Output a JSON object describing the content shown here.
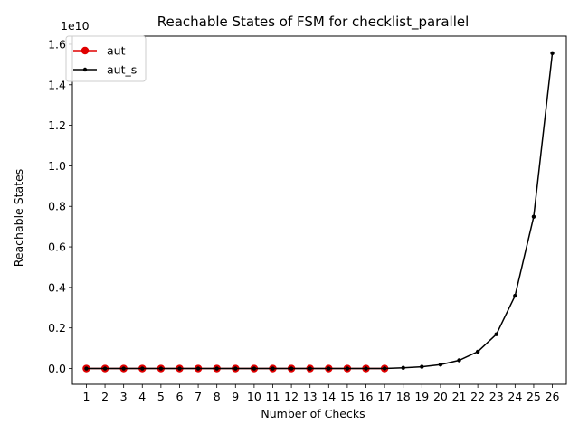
{
  "chart_data": {
    "type": "line",
    "title": "Reachable States of FSM for checklist_parallel",
    "xlabel": "Number of Checks",
    "ylabel": "Reachable States",
    "y_multiplier_label": "1e10",
    "x_ticks": [
      "1",
      "2",
      "3",
      "4",
      "5",
      "6",
      "7",
      "8",
      "9",
      "10",
      "11",
      "12",
      "13",
      "14",
      "15",
      "16",
      "17",
      "18",
      "19",
      "20",
      "21",
      "22",
      "23",
      "24",
      "25",
      "26"
    ],
    "y_ticks": [
      "0.0",
      "0.2",
      "0.4",
      "0.6",
      "0.8",
      "1.0",
      "1.2",
      "1.4",
      "1.6"
    ],
    "xlim": [
      0.25,
      26.75
    ],
    "ylim_e10": [
      -0.078,
      1.64
    ],
    "grid": false,
    "legend_position": "upper left",
    "series": [
      {
        "name": "aut",
        "color": "#e00000",
        "marker": "circle-large",
        "x": [
          1,
          2,
          3,
          4,
          5,
          6,
          7,
          8,
          9,
          10,
          11,
          12,
          13,
          14,
          15,
          16,
          17
        ],
        "y_e10": [
          0,
          0,
          0,
          0,
          0,
          0,
          0,
          0,
          0,
          0,
          0,
          0,
          0,
          0,
          0,
          0,
          0
        ]
      },
      {
        "name": "aut_s",
        "color": "#000000",
        "marker": "circle-small",
        "x": [
          1,
          2,
          3,
          4,
          5,
          6,
          7,
          8,
          9,
          10,
          11,
          12,
          13,
          14,
          15,
          16,
          17,
          18,
          19,
          20,
          21,
          22,
          23,
          24,
          25,
          26
        ],
        "y_e10": [
          0,
          0,
          0,
          0,
          0,
          0,
          0,
          0,
          0,
          0,
          0,
          0,
          0,
          0,
          0,
          0,
          0.0002,
          0.0034,
          0.0087,
          0.0191,
          0.0403,
          0.0829,
          0.1689,
          0.3592,
          0.749,
          1.556
        ]
      }
    ]
  }
}
